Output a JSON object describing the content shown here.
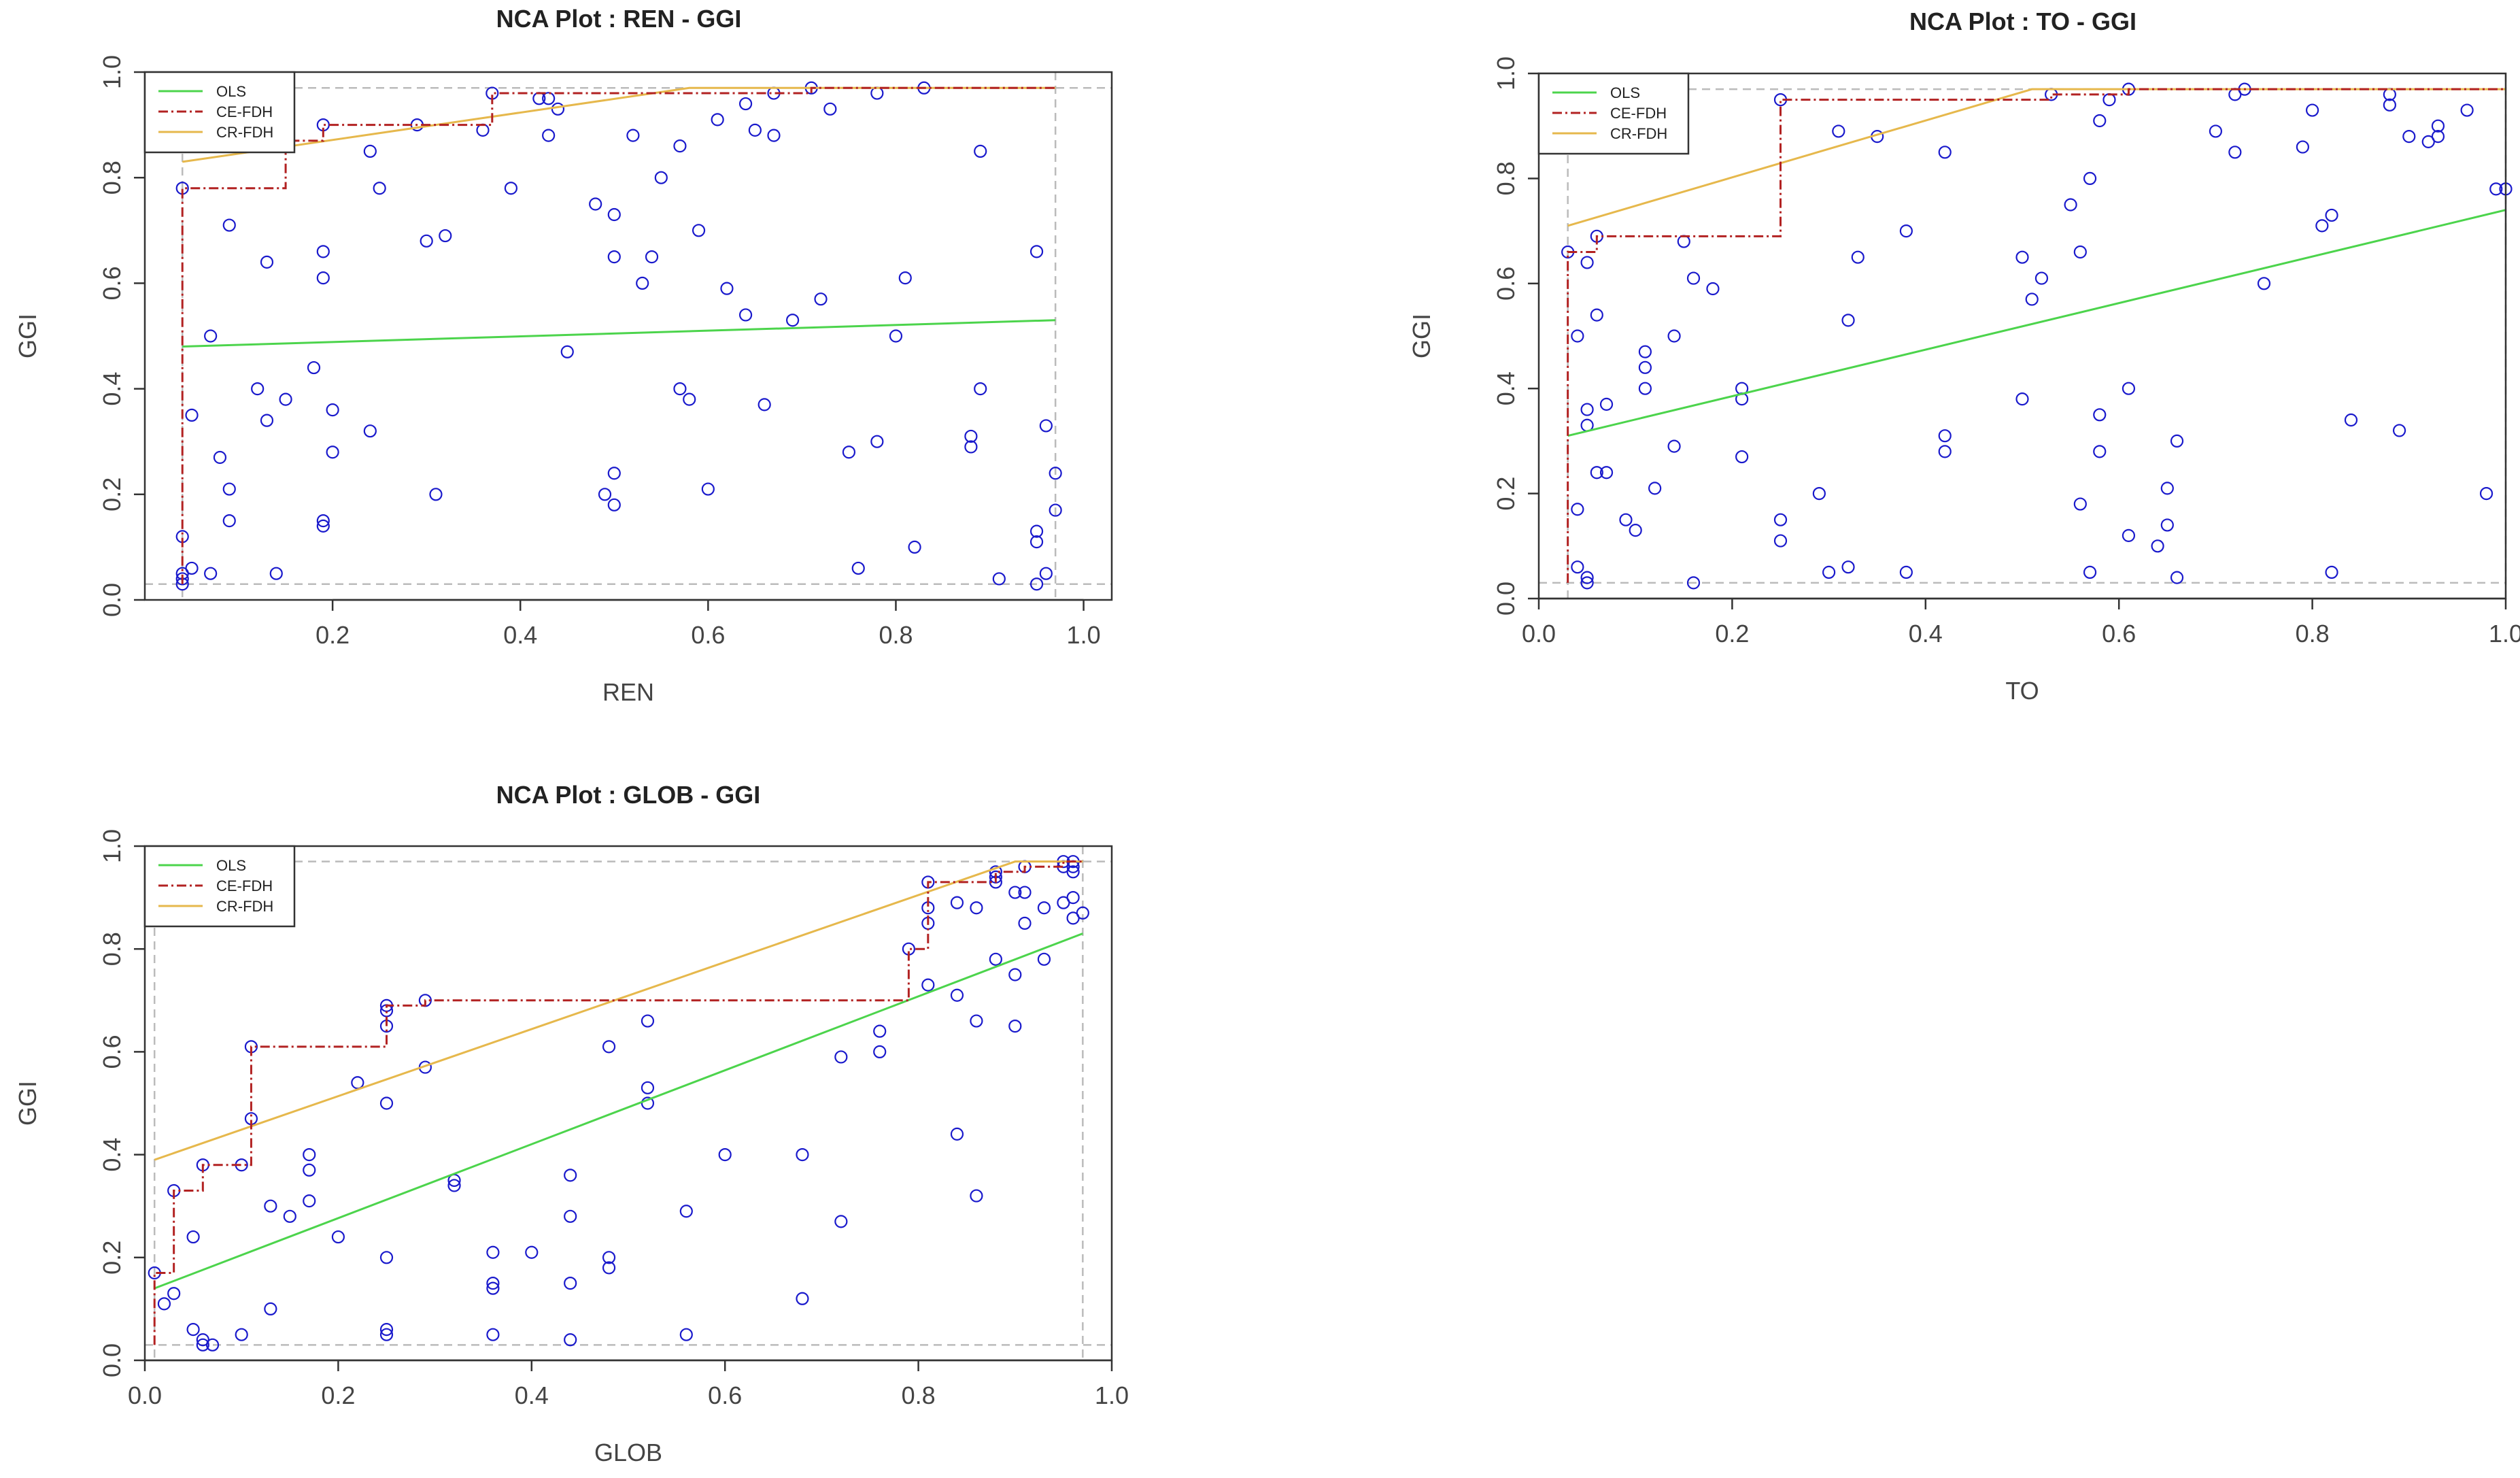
{
  "colors": {
    "ols": "#4cd44c",
    "ce_fdh": "#b22222",
    "cr_fdh": "#e6b84c",
    "points": "#1a1acc",
    "frame": "#333333",
    "ceiling_guide": "#bbbbbb"
  },
  "chart_data": [
    {
      "type": "scatter",
      "title": "NCA Plot : REN - GGI",
      "xlabel": "REN",
      "ylabel": "GGI",
      "xlim": [
        0.0,
        1.03
      ],
      "ylim": [
        0.0,
        1.0
      ],
      "xticks": [
        0.2,
        0.4,
        0.6,
        0.8,
        1.0
      ],
      "xtick_labels": [
        "0.2",
        "0.4",
        "0.6",
        "0.8",
        "1.0"
      ],
      "yticks": [
        0.0,
        0.2,
        0.4,
        0.6,
        0.8,
        1.0
      ],
      "ytick_labels": [
        "0.0",
        "0.2",
        "0.4",
        "0.6",
        "0.8",
        "1.0"
      ],
      "legend": [
        "OLS",
        "CE-FDH",
        "CR-FDH"
      ],
      "scope": {
        "xmin": 0.04,
        "xmax": 0.97,
        "ymin": 0.03,
        "ymax": 0.97
      },
      "ols": [
        [
          0.04,
          0.48
        ],
        [
          0.97,
          0.53
        ]
      ],
      "cr_fdh": [
        [
          0.04,
          0.83
        ],
        [
          0.58,
          0.97
        ],
        [
          0.97,
          0.97
        ]
      ],
      "ce_fdh": [
        [
          0.04,
          0.03
        ],
        [
          0.04,
          0.78
        ],
        [
          0.15,
          0.78
        ],
        [
          0.15,
          0.87
        ],
        [
          0.19,
          0.87
        ],
        [
          0.19,
          0.9
        ],
        [
          0.37,
          0.9
        ],
        [
          0.37,
          0.96
        ],
        [
          0.71,
          0.96
        ],
        [
          0.71,
          0.97
        ],
        [
          0.97,
          0.97
        ]
      ],
      "points": [
        [
          0.04,
          0.78
        ],
        [
          0.04,
          0.12
        ],
        [
          0.04,
          0.05
        ],
        [
          0.04,
          0.04
        ],
        [
          0.04,
          0.03
        ],
        [
          0.05,
          0.35
        ],
        [
          0.05,
          0.06
        ],
        [
          0.07,
          0.5
        ],
        [
          0.07,
          0.05
        ],
        [
          0.08,
          0.27
        ],
        [
          0.09,
          0.71
        ],
        [
          0.09,
          0.21
        ],
        [
          0.09,
          0.15
        ],
        [
          0.12,
          0.4
        ],
        [
          0.13,
          0.64
        ],
        [
          0.13,
          0.34
        ],
        [
          0.14,
          0.05
        ],
        [
          0.15,
          0.87
        ],
        [
          0.15,
          0.38
        ],
        [
          0.18,
          0.44
        ],
        [
          0.19,
          0.9
        ],
        [
          0.19,
          0.66
        ],
        [
          0.19,
          0.61
        ],
        [
          0.19,
          0.15
        ],
        [
          0.19,
          0.14
        ],
        [
          0.2,
          0.36
        ],
        [
          0.2,
          0.28
        ],
        [
          0.24,
          0.85
        ],
        [
          0.24,
          0.32
        ],
        [
          0.25,
          0.78
        ],
        [
          0.29,
          0.9
        ],
        [
          0.3,
          0.68
        ],
        [
          0.31,
          0.2
        ],
        [
          0.32,
          0.69
        ],
        [
          0.36,
          0.89
        ],
        [
          0.37,
          0.96
        ],
        [
          0.39,
          0.78
        ],
        [
          0.42,
          0.95
        ],
        [
          0.43,
          0.95
        ],
        [
          0.43,
          0.88
        ],
        [
          0.44,
          0.93
        ],
        [
          0.45,
          0.47
        ],
        [
          0.48,
          0.75
        ],
        [
          0.49,
          0.2
        ],
        [
          0.5,
          0.73
        ],
        [
          0.5,
          0.65
        ],
        [
          0.5,
          0.24
        ],
        [
          0.5,
          0.18
        ],
        [
          0.52,
          0.88
        ],
        [
          0.53,
          0.6
        ],
        [
          0.54,
          0.65
        ],
        [
          0.55,
          0.8
        ],
        [
          0.57,
          0.86
        ],
        [
          0.57,
          0.4
        ],
        [
          0.58,
          0.38
        ],
        [
          0.59,
          0.7
        ],
        [
          0.6,
          0.21
        ],
        [
          0.61,
          0.91
        ],
        [
          0.62,
          0.59
        ],
        [
          0.64,
          0.94
        ],
        [
          0.64,
          0.54
        ],
        [
          0.65,
          0.89
        ],
        [
          0.66,
          0.37
        ],
        [
          0.67,
          0.96
        ],
        [
          0.67,
          0.88
        ],
        [
          0.69,
          0.53
        ],
        [
          0.71,
          0.97
        ],
        [
          0.72,
          0.57
        ],
        [
          0.73,
          0.93
        ],
        [
          0.75,
          0.28
        ],
        [
          0.76,
          0.06
        ],
        [
          0.78,
          0.96
        ],
        [
          0.78,
          0.3
        ],
        [
          0.8,
          0.5
        ],
        [
          0.81,
          0.61
        ],
        [
          0.82,
          0.1
        ],
        [
          0.83,
          0.97
        ],
        [
          0.88,
          0.31
        ],
        [
          0.88,
          0.29
        ],
        [
          0.89,
          0.85
        ],
        [
          0.89,
          0.4
        ],
        [
          0.91,
          0.04
        ],
        [
          0.95,
          0.66
        ],
        [
          0.95,
          0.13
        ],
        [
          0.95,
          0.11
        ],
        [
          0.95,
          0.03
        ],
        [
          0.96,
          0.33
        ],
        [
          0.96,
          0.05
        ],
        [
          0.97,
          0.24
        ],
        [
          0.97,
          0.17
        ]
      ]
    },
    {
      "type": "scatter",
      "title": "NCA Plot : TO - GGI",
      "xlabel": "TO",
      "ylabel": "GGI",
      "xlim": [
        0.0,
        1.0
      ],
      "ylim": [
        0.0,
        1.0
      ],
      "xticks": [
        0.0,
        0.2,
        0.4,
        0.6,
        0.8,
        1.0
      ],
      "xtick_labels": [
        "0.0",
        "0.2",
        "0.4",
        "0.6",
        "0.8",
        "1.0"
      ],
      "yticks": [
        0.0,
        0.2,
        0.4,
        0.6,
        0.8,
        1.0
      ],
      "ytick_labels": [
        "0.0",
        "0.2",
        "0.4",
        "0.6",
        "0.8",
        "1.0"
      ],
      "legend": [
        "OLS",
        "CE-FDH",
        "CR-FDH"
      ],
      "scope": {
        "xmin": 0.03,
        "xmax": 1.0,
        "ymin": 0.03,
        "ymax": 0.97
      },
      "ols": [
        [
          0.03,
          0.31
        ],
        [
          1.0,
          0.74
        ]
      ],
      "cr_fdh": [
        [
          0.03,
          0.71
        ],
        [
          0.51,
          0.97
        ],
        [
          1.0,
          0.97
        ]
      ],
      "ce_fdh": [
        [
          0.03,
          0.03
        ],
        [
          0.03,
          0.66
        ],
        [
          0.06,
          0.66
        ],
        [
          0.06,
          0.69
        ],
        [
          0.25,
          0.69
        ],
        [
          0.25,
          0.95
        ],
        [
          0.53,
          0.95
        ],
        [
          0.53,
          0.96
        ],
        [
          0.61,
          0.96
        ],
        [
          0.61,
          0.97
        ],
        [
          1.0,
          0.97
        ]
      ],
      "points": [
        [
          0.03,
          0.66
        ],
        [
          0.04,
          0.5
        ],
        [
          0.04,
          0.17
        ],
        [
          0.04,
          0.06
        ],
        [
          0.05,
          0.64
        ],
        [
          0.05,
          0.36
        ],
        [
          0.05,
          0.33
        ],
        [
          0.05,
          0.04
        ],
        [
          0.05,
          0.03
        ],
        [
          0.06,
          0.69
        ],
        [
          0.06,
          0.54
        ],
        [
          0.06,
          0.24
        ],
        [
          0.07,
          0.37
        ],
        [
          0.07,
          0.24
        ],
        [
          0.09,
          0.15
        ],
        [
          0.1,
          0.13
        ],
        [
          0.11,
          0.47
        ],
        [
          0.11,
          0.44
        ],
        [
          0.11,
          0.4
        ],
        [
          0.12,
          0.21
        ],
        [
          0.14,
          0.5
        ],
        [
          0.14,
          0.29
        ],
        [
          0.15,
          0.68
        ],
        [
          0.16,
          0.61
        ],
        [
          0.16,
          0.03
        ],
        [
          0.18,
          0.59
        ],
        [
          0.21,
          0.4
        ],
        [
          0.21,
          0.38
        ],
        [
          0.21,
          0.27
        ],
        [
          0.25,
          0.95
        ],
        [
          0.25,
          0.15
        ],
        [
          0.25,
          0.11
        ],
        [
          0.29,
          0.2
        ],
        [
          0.3,
          0.05
        ],
        [
          0.31,
          0.89
        ],
        [
          0.32,
          0.53
        ],
        [
          0.32,
          0.06
        ],
        [
          0.33,
          0.65
        ],
        [
          0.35,
          0.88
        ],
        [
          0.38,
          0.7
        ],
        [
          0.38,
          0.05
        ],
        [
          0.42,
          0.85
        ],
        [
          0.42,
          0.31
        ],
        [
          0.42,
          0.28
        ],
        [
          0.5,
          0.65
        ],
        [
          0.5,
          0.38
        ],
        [
          0.51,
          0.57
        ],
        [
          0.52,
          0.61
        ],
        [
          0.53,
          0.96
        ],
        [
          0.55,
          0.75
        ],
        [
          0.56,
          0.66
        ],
        [
          0.56,
          0.18
        ],
        [
          0.57,
          0.8
        ],
        [
          0.57,
          0.05
        ],
        [
          0.58,
          0.91
        ],
        [
          0.58,
          0.35
        ],
        [
          0.58,
          0.28
        ],
        [
          0.59,
          0.95
        ],
        [
          0.61,
          0.97
        ],
        [
          0.61,
          0.4
        ],
        [
          0.61,
          0.12
        ],
        [
          0.64,
          0.1
        ],
        [
          0.65,
          0.21
        ],
        [
          0.65,
          0.14
        ],
        [
          0.66,
          0.3
        ],
        [
          0.66,
          0.04
        ],
        [
          0.7,
          0.89
        ],
        [
          0.72,
          0.96
        ],
        [
          0.72,
          0.85
        ],
        [
          0.73,
          0.97
        ],
        [
          0.75,
          0.6
        ],
        [
          0.79,
          0.86
        ],
        [
          0.8,
          0.93
        ],
        [
          0.81,
          0.71
        ],
        [
          0.82,
          0.73
        ],
        [
          0.82,
          0.05
        ],
        [
          0.84,
          0.34
        ],
        [
          0.88,
          0.96
        ],
        [
          0.88,
          0.94
        ],
        [
          0.89,
          0.32
        ],
        [
          0.9,
          0.88
        ],
        [
          0.92,
          0.87
        ],
        [
          0.93,
          0.9
        ],
        [
          0.93,
          0.88
        ],
        [
          0.96,
          0.93
        ],
        [
          0.98,
          0.2
        ],
        [
          0.99,
          0.78
        ],
        [
          1.0,
          0.78
        ]
      ]
    },
    {
      "type": "scatter",
      "title": "NCA Plot : GLOB - GGI",
      "xlabel": "GLOB",
      "ylabel": "GGI",
      "xlim": [
        0.0,
        1.0
      ],
      "ylim": [
        0.0,
        1.0
      ],
      "xticks": [
        0.0,
        0.2,
        0.4,
        0.6,
        0.8,
        1.0
      ],
      "xtick_labels": [
        "0.0",
        "0.2",
        "0.4",
        "0.6",
        "0.8",
        "1.0"
      ],
      "yticks": [
        0.0,
        0.2,
        0.4,
        0.6,
        0.8,
        1.0
      ],
      "ytick_labels": [
        "0.0",
        "0.2",
        "0.4",
        "0.6",
        "0.8",
        "1.0"
      ],
      "legend": [
        "OLS",
        "CE-FDH",
        "CR-FDH"
      ],
      "scope": {
        "xmin": 0.01,
        "xmax": 0.97,
        "ymin": 0.03,
        "ymax": 0.97
      },
      "ols": [
        [
          0.01,
          0.14
        ],
        [
          0.97,
          0.83
        ]
      ],
      "cr_fdh": [
        [
          0.01,
          0.39
        ],
        [
          0.9,
          0.97
        ],
        [
          0.97,
          0.97
        ]
      ],
      "ce_fdh": [
        [
          0.01,
          0.03
        ],
        [
          0.01,
          0.17
        ],
        [
          0.03,
          0.17
        ],
        [
          0.03,
          0.33
        ],
        [
          0.06,
          0.33
        ],
        [
          0.06,
          0.38
        ],
        [
          0.11,
          0.38
        ],
        [
          0.11,
          0.61
        ],
        [
          0.25,
          0.61
        ],
        [
          0.25,
          0.69
        ],
        [
          0.29,
          0.69
        ],
        [
          0.29,
          0.7
        ],
        [
          0.79,
          0.7
        ],
        [
          0.79,
          0.8
        ],
        [
          0.81,
          0.8
        ],
        [
          0.81,
          0.93
        ],
        [
          0.88,
          0.93
        ],
        [
          0.88,
          0.95
        ],
        [
          0.91,
          0.95
        ],
        [
          0.91,
          0.96
        ],
        [
          0.95,
          0.96
        ],
        [
          0.95,
          0.97
        ],
        [
          0.97,
          0.97
        ]
      ],
      "points": [
        [
          0.01,
          0.17
        ],
        [
          0.02,
          0.11
        ],
        [
          0.03,
          0.33
        ],
        [
          0.03,
          0.13
        ],
        [
          0.05,
          0.24
        ],
        [
          0.05,
          0.06
        ],
        [
          0.06,
          0.38
        ],
        [
          0.06,
          0.04
        ],
        [
          0.06,
          0.03
        ],
        [
          0.07,
          0.03
        ],
        [
          0.1,
          0.38
        ],
        [
          0.1,
          0.05
        ],
        [
          0.11,
          0.61
        ],
        [
          0.11,
          0.47
        ],
        [
          0.13,
          0.3
        ],
        [
          0.13,
          0.1
        ],
        [
          0.15,
          0.28
        ],
        [
          0.17,
          0.4
        ],
        [
          0.17,
          0.37
        ],
        [
          0.17,
          0.31
        ],
        [
          0.2,
          0.24
        ],
        [
          0.22,
          0.54
        ],
        [
          0.25,
          0.69
        ],
        [
          0.25,
          0.68
        ],
        [
          0.25,
          0.65
        ],
        [
          0.25,
          0.5
        ],
        [
          0.25,
          0.2
        ],
        [
          0.25,
          0.06
        ],
        [
          0.25,
          0.05
        ],
        [
          0.29,
          0.7
        ],
        [
          0.29,
          0.57
        ],
        [
          0.32,
          0.35
        ],
        [
          0.32,
          0.34
        ],
        [
          0.36,
          0.21
        ],
        [
          0.36,
          0.15
        ],
        [
          0.36,
          0.14
        ],
        [
          0.36,
          0.05
        ],
        [
          0.4,
          0.21
        ],
        [
          0.44,
          0.36
        ],
        [
          0.44,
          0.28
        ],
        [
          0.44,
          0.15
        ],
        [
          0.44,
          0.04
        ],
        [
          0.48,
          0.61
        ],
        [
          0.48,
          0.2
        ],
        [
          0.48,
          0.18
        ],
        [
          0.52,
          0.66
        ],
        [
          0.52,
          0.53
        ],
        [
          0.52,
          0.5
        ],
        [
          0.56,
          0.29
        ],
        [
          0.56,
          0.05
        ],
        [
          0.6,
          0.4
        ],
        [
          0.68,
          0.4
        ],
        [
          0.68,
          0.12
        ],
        [
          0.72,
          0.59
        ],
        [
          0.72,
          0.27
        ],
        [
          0.76,
          0.64
        ],
        [
          0.76,
          0.6
        ],
        [
          0.79,
          0.8
        ],
        [
          0.81,
          0.93
        ],
        [
          0.81,
          0.88
        ],
        [
          0.81,
          0.85
        ],
        [
          0.81,
          0.73
        ],
        [
          0.84,
          0.89
        ],
        [
          0.84,
          0.71
        ],
        [
          0.84,
          0.44
        ],
        [
          0.86,
          0.88
        ],
        [
          0.86,
          0.66
        ],
        [
          0.86,
          0.32
        ],
        [
          0.88,
          0.95
        ],
        [
          0.88,
          0.94
        ],
        [
          0.88,
          0.93
        ],
        [
          0.88,
          0.78
        ],
        [
          0.9,
          0.91
        ],
        [
          0.9,
          0.75
        ],
        [
          0.9,
          0.65
        ],
        [
          0.91,
          0.96
        ],
        [
          0.91,
          0.91
        ],
        [
          0.91,
          0.85
        ],
        [
          0.93,
          0.88
        ],
        [
          0.93,
          0.78
        ],
        [
          0.95,
          0.97
        ],
        [
          0.95,
          0.96
        ],
        [
          0.95,
          0.89
        ],
        [
          0.96,
          0.97
        ],
        [
          0.96,
          0.96
        ],
        [
          0.96,
          0.95
        ],
        [
          0.96,
          0.9
        ],
        [
          0.96,
          0.86
        ],
        [
          0.97,
          0.87
        ]
      ]
    }
  ]
}
